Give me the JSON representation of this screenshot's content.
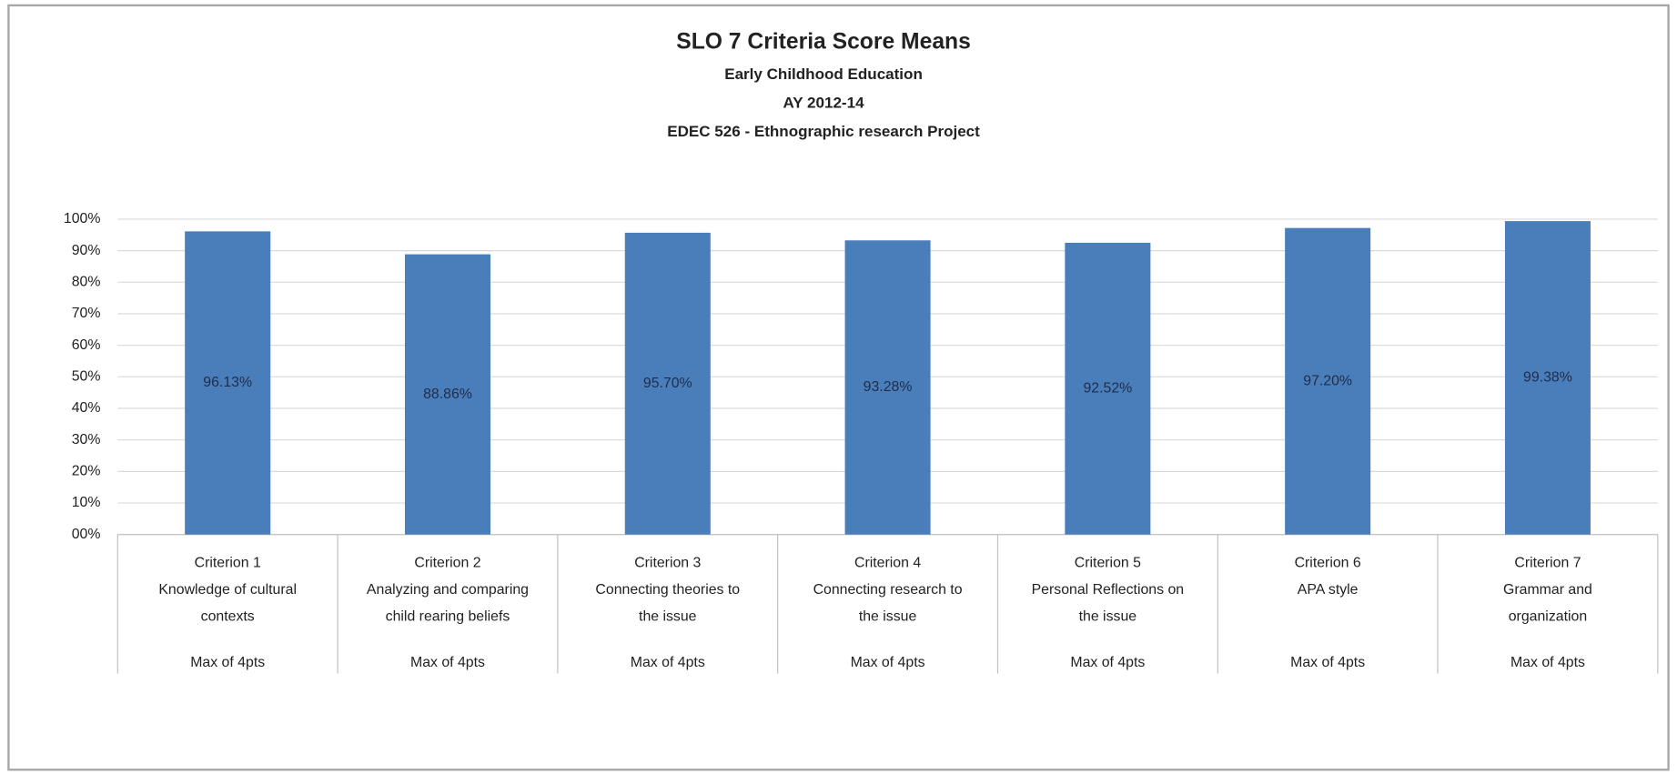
{
  "chart_data": {
    "type": "bar",
    "title": "SLO 7 Criteria Score Means",
    "subtitles": [
      "Early Childhood Education",
      "AY 2012-14",
      "EDEC 526 - Ethnographic research Project"
    ],
    "categories": [
      [
        "Criterion 1",
        "Knowledge of cultural",
        "contexts"
      ],
      [
        "Criterion 2",
        "Analyzing and comparing",
        "child rearing beliefs"
      ],
      [
        "Criterion 3",
        "Connecting theories to",
        "the issue"
      ],
      [
        "Criterion 4",
        "Connecting research  to",
        "the issue"
      ],
      [
        "Criterion 5",
        "Personal Reflections on",
        "the issue"
      ],
      [
        "Criterion 6",
        "APA style"
      ],
      [
        "Criterion 7",
        "Grammar and",
        "organization"
      ]
    ],
    "sublabels": [
      "Max of 4pts",
      "Max of 4pts",
      "Max of 4pts",
      "Max of 4pts",
      "Max of 4pts",
      "Max of 4pts",
      "Max of 4pts"
    ],
    "values": [
      96.13,
      88.86,
      95.7,
      93.28,
      92.52,
      97.2,
      99.38
    ],
    "value_labels": [
      "96.13%",
      "88.86%",
      "95.70%",
      "93.28%",
      "92.52%",
      "97.20%",
      "99.38%"
    ],
    "color": "#4a7ebb",
    "ylim": [
      0,
      100
    ],
    "yticks": [
      {
        "value": 0,
        "label": "00%"
      },
      {
        "value": 10,
        "label": "10%"
      },
      {
        "value": 20,
        "label": "20%"
      },
      {
        "value": 30,
        "label": "30%"
      },
      {
        "value": 40,
        "label": "40%"
      },
      {
        "value": 50,
        "label": "50%"
      },
      {
        "value": 60,
        "label": "60%"
      },
      {
        "value": 70,
        "label": "70%"
      },
      {
        "value": 80,
        "label": "80%"
      },
      {
        "value": 90,
        "label": "90%"
      },
      {
        "value": 100,
        "label": "100%"
      }
    ],
    "grid": true
  }
}
